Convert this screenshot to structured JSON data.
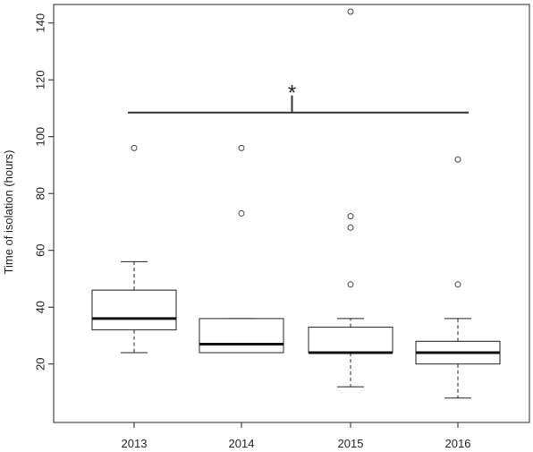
{
  "chart_data": {
    "type": "box",
    "title": "",
    "xlabel": "",
    "ylabel": "Time of isolation (hours)",
    "ylim": [
      5,
      147
    ],
    "yticks": [
      20,
      40,
      60,
      80,
      100,
      120,
      140
    ],
    "categories": [
      "2013",
      "2014",
      "2015",
      "2016"
    ],
    "boxes": [
      {
        "category": "2013",
        "whisker_low": 24,
        "q1": 32,
        "median": 36,
        "q3": 46,
        "whisker_high": 56,
        "outliers": [
          96
        ]
      },
      {
        "category": "2014",
        "whisker_low": 24,
        "q1": 24,
        "median": 27,
        "q3": 36,
        "whisker_high": 36,
        "outliers": [
          73,
          96
        ]
      },
      {
        "category": "2015",
        "whisker_low": 12,
        "q1": 24,
        "median": 24,
        "q3": 33,
        "whisker_high": 36,
        "outliers": [
          48,
          68,
          72,
          144
        ]
      },
      {
        "category": "2016",
        "whisker_low": 8,
        "q1": 20,
        "median": 24,
        "q3": 28,
        "whisker_high": 36,
        "outliers": [
          48,
          92
        ]
      }
    ],
    "significance": {
      "label": "*",
      "y": 108.5,
      "from": "2013",
      "to": "2016"
    },
    "grid": false,
    "legend": "none"
  }
}
